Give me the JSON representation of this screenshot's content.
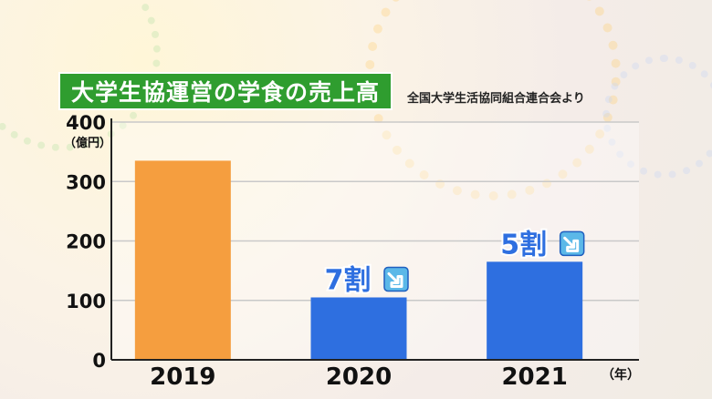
{
  "header": {
    "title": "大学生協運営の学食の売上高",
    "source": "全国大学生活協同組合連合会より"
  },
  "colors": {
    "highlight_bar": "#f59e3f",
    "normal_bar": "#2e6fe0",
    "annotation_text": "#2e6fe0",
    "arrow": "#5bb8e8",
    "title_bg": "#2f9d2f"
  },
  "chart_data": {
    "type": "bar",
    "title": "大学生協運営の学食の売上高",
    "categories": [
      "2019",
      "2020",
      "2021"
    ],
    "values": [
      335,
      105,
      165
    ],
    "ylim": [
      0,
      400
    ],
    "yticks": [
      0,
      100,
      200,
      300,
      400
    ],
    "ylabel": "（億円）",
    "xlabel": "（年）",
    "grid": true,
    "annotations": [
      {
        "category": "2020",
        "text": "7割",
        "icon": "down-right-arrow-icon"
      },
      {
        "category": "2021",
        "text": "5割",
        "icon": "down-right-arrow-icon"
      }
    ]
  }
}
